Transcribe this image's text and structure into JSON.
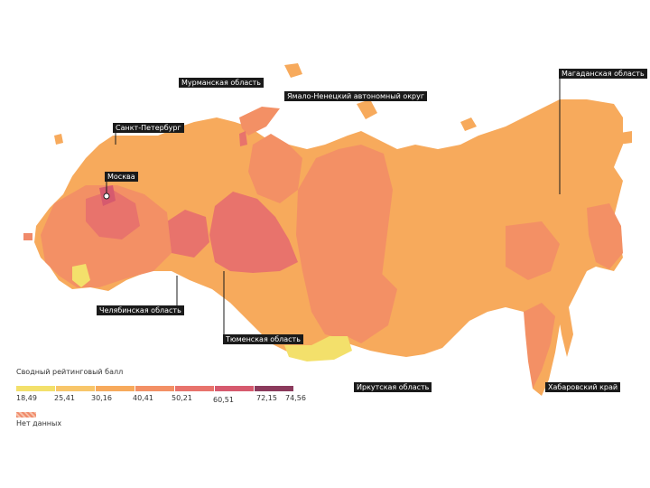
{
  "callouts": {
    "murmansk": "Мурманская область",
    "yamal": "Ямало-Ненецкий автономный округ",
    "spb": "Санкт-Петербург",
    "moscow": "Москва",
    "chelyabinsk": "Челябинская область",
    "tyumen": "Тюменская область",
    "irkutsk": "Иркутская область",
    "magadan": "Магаданская область",
    "khabarovsk": "Хабаровский край"
  },
  "legend": {
    "title": "Сводный рейтинговый балл",
    "ticks": [
      "18,49",
      "25,41",
      "30,16",
      "40,41",
      "50,21",
      "60,51",
      "72,15",
      "74,56"
    ],
    "colors": [
      "#f3e06b",
      "#f8c66a",
      "#f7aa5c",
      "#f39065",
      "#e8736c",
      "#d65a6e",
      "#8b3a5c"
    ],
    "no_data_label": "Нет данных",
    "no_data_color": "#f0825f"
  }
}
